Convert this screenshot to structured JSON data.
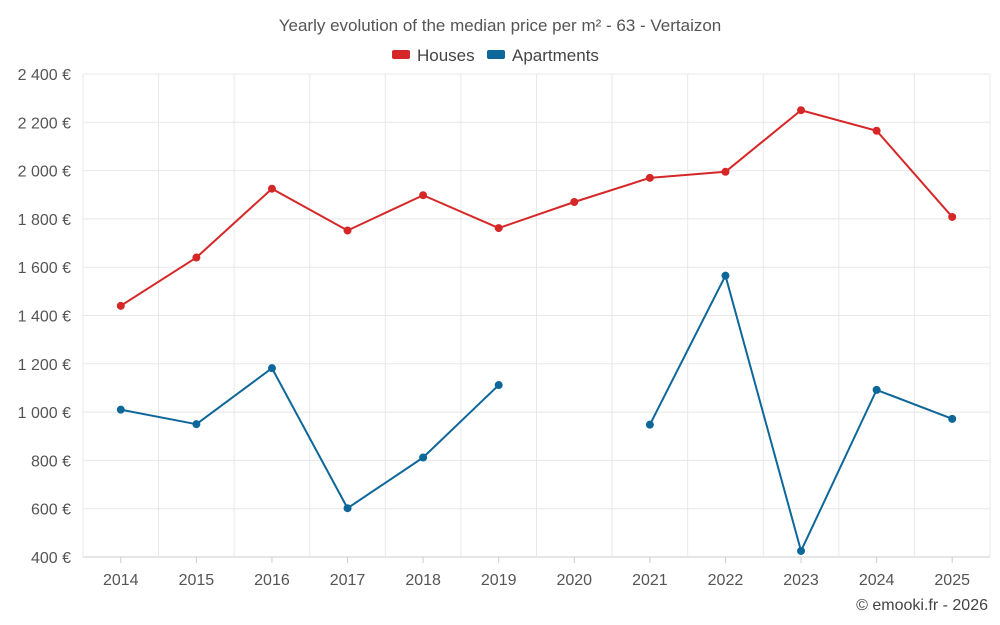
{
  "chart_data": {
    "type": "line",
    "title": "Yearly evolution of the median price per m² - 63 - Vertaizon",
    "categories": [
      "2014",
      "2015",
      "2016",
      "2017",
      "2018",
      "2019",
      "2020",
      "2021",
      "2022",
      "2023",
      "2024",
      "2025"
    ],
    "series": [
      {
        "name": "Houses",
        "color": "#d62728",
        "values": [
          1440,
          1640,
          1925,
          1752,
          1898,
          1762,
          1870,
          1970,
          1995,
          2250,
          2165,
          1808
        ]
      },
      {
        "name": "Apartments",
        "color": "#0d6799",
        "values": [
          1010,
          950,
          1182,
          602,
          812,
          1112,
          null,
          948,
          1565,
          425,
          1092,
          972
        ]
      }
    ],
    "ylim": [
      400,
      2400
    ],
    "yticks": [
      400,
      600,
      800,
      1000,
      1200,
      1400,
      1600,
      1800,
      2000,
      2200,
      2400
    ],
    "ytick_labels": [
      "400 €",
      "600 €",
      "800 €",
      "1 000 €",
      "1 200 €",
      "1 400 €",
      "1 600 €",
      "1 800 €",
      "2 000 €",
      "2 200 €",
      "2 400 €"
    ],
    "xlabel": "",
    "ylabel": "",
    "grid": true,
    "legend": "top-center"
  },
  "credit": "© emooki.fr - 2026"
}
